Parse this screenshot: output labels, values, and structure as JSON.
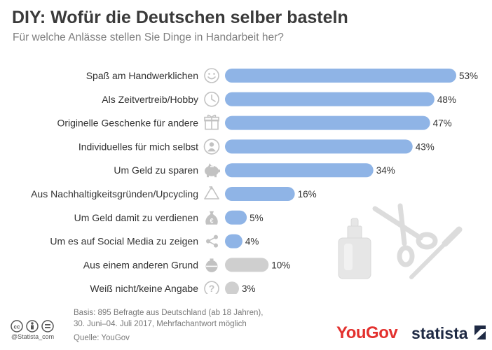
{
  "header": {
    "title": "DIY: Wofür die Deutschen selber basteln",
    "subtitle": "Für welche Anlässe stellen Sie Dinge in Handarbeit her?"
  },
  "chart_data": {
    "type": "bar",
    "orientation": "horizontal",
    "title": "DIY: Wofür die Deutschen selber basteln",
    "subtitle": "Für welche Anlässe stellen Sie Dinge in Handarbeit her?",
    "categories": [
      "Spaß am Handwerklichen",
      "Als Zeitvertreib/Hobby",
      "Originelle Geschenke für andere",
      "Individuelles für mich selbst",
      "Um Geld zu sparen",
      "Aus Nachhaltigkeitsgründen/Upcycling",
      "Um Geld damit zu verdienen",
      "Um es auf Social Media zu zeigen",
      "Aus einem anderen Grund",
      "Weiß nicht/keine Angabe"
    ],
    "values": [
      53,
      48,
      47,
      43,
      34,
      16,
      5,
      4,
      10,
      3
    ],
    "value_labels": [
      "53%",
      "48%",
      "47%",
      "43%",
      "34%",
      "16%",
      "5%",
      "4%",
      "10%",
      "3%"
    ],
    "icons": [
      "smiley-icon",
      "clock-icon",
      "gift-icon",
      "person-icon",
      "piggy-bank-icon",
      "recycle-icon",
      "money-bag-icon",
      "share-icon",
      "ornament-icon",
      "question-icon"
    ],
    "colors": [
      "#8fb4e6",
      "#8fb4e6",
      "#8fb4e6",
      "#8fb4e6",
      "#8fb4e6",
      "#8fb4e6",
      "#8fb4e6",
      "#8fb4e6",
      "#cfcfcf",
      "#cfcfcf"
    ],
    "unit": "%",
    "xlim": [
      0,
      53
    ],
    "grid": false,
    "legend": "none"
  },
  "footer": {
    "basis_line1": "Basis: 895 Befragte aus Deutschland (ab 18 Jahren),",
    "basis_line2": "30. Juni–04. Juli 2017, Mehrfachantwort möglich",
    "source": "Quelle: YouGov",
    "handle": "@Statista_com",
    "brand_yougov": "YouGov",
    "brand_statista": "statista"
  },
  "colors": {
    "bar_primary": "#8fb4e6",
    "bar_secondary": "#cfcfcf",
    "icon_gray": "#c2c2c2",
    "yougov_red": "#e3312e",
    "statista_navy": "#1f2a44"
  }
}
